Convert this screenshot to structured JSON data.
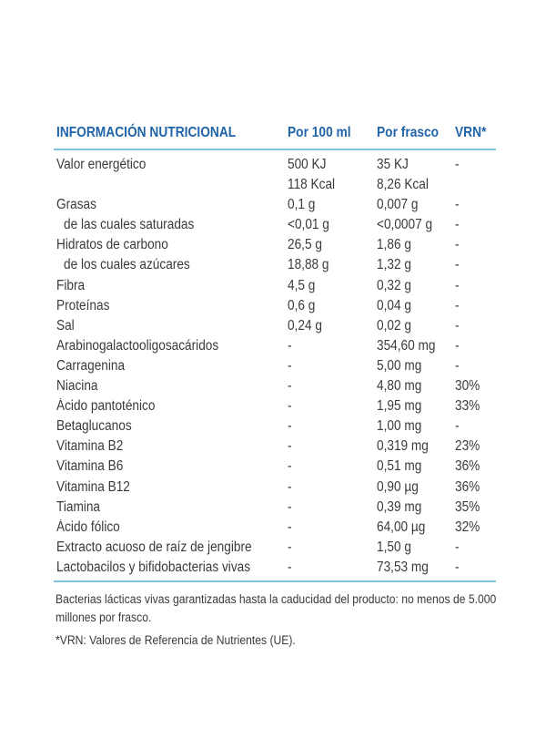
{
  "table": {
    "headers": {
      "name": "INFORMACIÓN NUTRICIONAL",
      "per100": "Por 100 ml",
      "perBottle": "Por frasco",
      "vrn": "VRN*"
    },
    "rows": [
      {
        "name": "Valor energético",
        "per100": "500 KJ",
        "per100b": "118 Kcal",
        "perBottle": "35 KJ",
        "perBottleb": "8,26 Kcal",
        "vrn": "-"
      },
      {
        "name": "Grasas",
        "per100": "0,1 g",
        "perBottle": "0,007 g",
        "vrn": "-"
      },
      {
        "name": "de las cuales saturadas",
        "per100": "<0,01 g",
        "perBottle": "<0,0007 g",
        "vrn": "-"
      },
      {
        "name": "Hidratos de carbono",
        "per100": "26,5 g",
        "perBottle": "1,86 g",
        "vrn": "-"
      },
      {
        "name": "de los cuales azúcares",
        "per100": "18,88 g",
        "perBottle": "1,32 g",
        "vrn": "-"
      },
      {
        "name": "Fibra",
        "per100": "4,5 g",
        "perBottle": "0,32 g",
        "vrn": "-"
      },
      {
        "name": "Proteínas",
        "per100": "0,6 g",
        "perBottle": "0,04 g",
        "vrn": "-"
      },
      {
        "name": "Sal",
        "per100": "0,24 g",
        "perBottle": "0,02 g",
        "vrn": "-"
      },
      {
        "name": "Arabinogalactooligosacáridos",
        "per100": "-",
        "perBottle": "354,60 mg",
        "vrn": "-"
      },
      {
        "name": "Carragenina",
        "per100": "-",
        "perBottle": "5,00 mg",
        "vrn": "-"
      },
      {
        "name": "Niacina",
        "per100": "-",
        "perBottle": "4,80 mg",
        "vrn": "30%"
      },
      {
        "name": "Ácido pantoténico",
        "per100": "-",
        "perBottle": "1,95 mg",
        "vrn": "33%"
      },
      {
        "name": "Betaglucanos",
        "per100": "-",
        "perBottle": "1,00 mg",
        "vrn": "-"
      },
      {
        "name": "Vitamina B2",
        "per100": "-",
        "perBottle": "0,319 mg",
        "vrn": "23%"
      },
      {
        "name": "Vitamina B6",
        "per100": "-",
        "perBottle": "0,51 mg",
        "vrn": "36%"
      },
      {
        "name": "Vitamina B12",
        "per100": "-",
        "perBottle": "0,90 µg",
        "vrn": "36%"
      },
      {
        "name": "Tiamina",
        "per100": "-",
        "perBottle": "0,39 mg",
        "vrn": "35%"
      },
      {
        "name": "Ácido fólico",
        "per100": "-",
        "perBottle": "64,00 µg",
        "vrn": "32%"
      },
      {
        "name": "Extracto acuoso de raíz de jengibre",
        "per100": "-",
        "perBottle": "1,50 g",
        "vrn": "-"
      },
      {
        "name": "Lactobacilos y bifidobacterias vivas",
        "per100": "-",
        "perBottle": "73,53 mg",
        "vrn": "-"
      }
    ]
  },
  "notes": {
    "bacteria": "Bacterias lácticas vivas garantizadas hasta la caducidad del producto: no menos de 5.000 millones por frasco.",
    "vrn": "*VRN: Valores de Referencia de Nutrientes (UE)."
  },
  "colors": {
    "header_text": "#1f64a8",
    "rule": "#7fc3e3",
    "body_text": "#3a3a3a"
  }
}
